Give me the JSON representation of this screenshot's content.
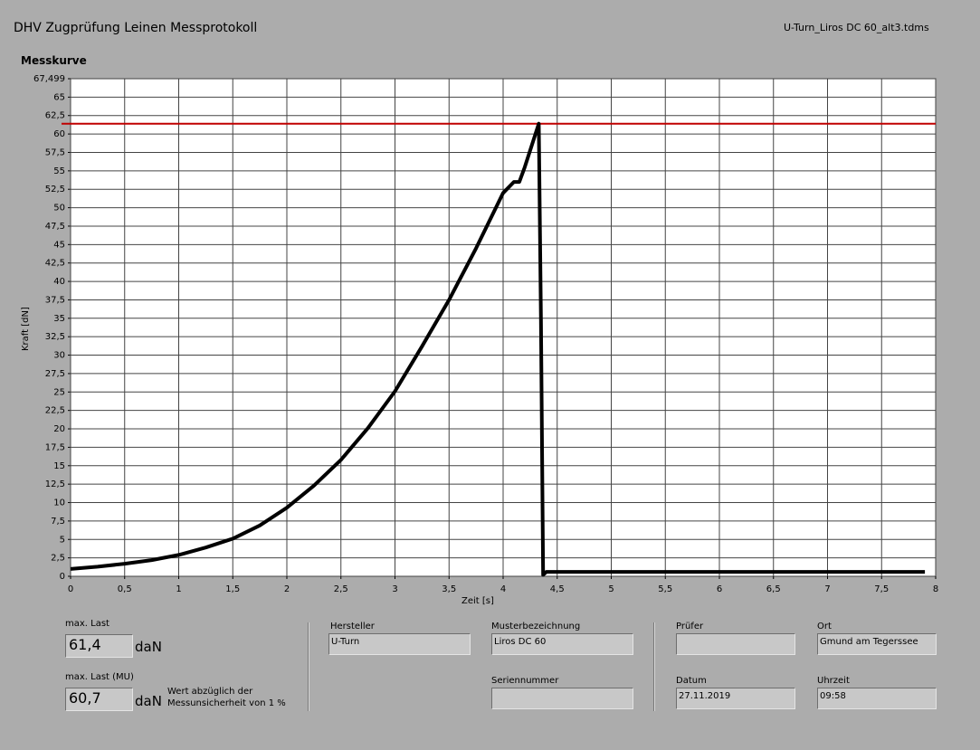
{
  "header": {
    "title": "DHV Zugprüfung Leinen Messprotokoll",
    "file": "U-Turn_Liros DC 60_alt3.tdms"
  },
  "chart_data": {
    "type": "line",
    "title": "Messkurve",
    "x_label": "Zeit [s]",
    "y_label": "Kraft [dN]",
    "x": [
      0,
      0.25,
      0.5,
      0.75,
      1,
      1.25,
      1.5,
      1.75,
      2,
      2.25,
      2.5,
      2.75,
      3,
      3.25,
      3.5,
      3.75,
      4,
      4.1,
      4.15,
      4.2,
      4.33,
      4.35,
      4.37,
      4.4,
      5,
      6,
      7,
      7.9
    ],
    "values": [
      1.0,
      1.3,
      1.7,
      2.2,
      2.9,
      3.9,
      5.1,
      6.9,
      9.3,
      12.3,
      15.8,
      20.1,
      25.1,
      31.2,
      37.5,
      44.5,
      52.0,
      53.5,
      53.5,
      55.5,
      61.4,
      35,
      0.2,
      0.6,
      0.6,
      0.6,
      0.6,
      0.6
    ],
    "color": "#000000",
    "reference_line": {
      "value": 61.4,
      "color": "#c00000"
    },
    "xlim": [
      0,
      8
    ],
    "xticks": [
      0,
      {
        "value": 0.5,
        "label": "0,5"
      },
      1,
      {
        "value": 1.5,
        "label": "1,5"
      },
      2,
      {
        "value": 2.5,
        "label": "2,5"
      },
      3,
      {
        "value": 3.5,
        "label": "3,5"
      },
      4,
      {
        "value": 4.5,
        "label": "4,5"
      },
      5,
      {
        "value": 5.5,
        "label": "5,5"
      },
      6,
      {
        "value": 6.5,
        "label": "6,5"
      },
      7,
      {
        "value": 7.5,
        "label": "7,5"
      },
      8
    ],
    "ylim": [
      0,
      67.499
    ],
    "yticks": [
      0,
      {
        "value": 2.5,
        "label": "2,5"
      },
      5,
      {
        "value": 7.5,
        "label": "7,5"
      },
      10,
      {
        "value": 12.5,
        "label": "12,5"
      },
      15,
      {
        "value": 17.5,
        "label": "17,5"
      },
      20,
      {
        "value": 22.5,
        "label": "22,5"
      },
      25,
      {
        "value": 27.5,
        "label": "27,5"
      },
      30,
      {
        "value": 32.5,
        "label": "32,5"
      },
      35,
      {
        "value": 37.5,
        "label": "37,5"
      },
      40,
      {
        "value": 42.5,
        "label": "42,5"
      },
      45,
      {
        "value": 47.5,
        "label": "47,5"
      },
      50,
      {
        "value": 52.5,
        "label": "52,5"
      },
      55,
      {
        "value": 57.5,
        "label": "57,5"
      },
      60,
      {
        "value": 62.5,
        "label": "62,5"
      },
      65,
      {
        "value": 67.499,
        "label": "67,499"
      }
    ],
    "grid": true
  },
  "results": {
    "max_label": "max. Last",
    "max_value": "61,4",
    "max_unit": "daN",
    "mu_label": "max. Last (MU)",
    "mu_value": "60,7",
    "mu_unit": "daN",
    "note": "Wert abzüglich der Messunsicherheit von 1 %"
  },
  "fields": {
    "hersteller": {
      "label": "Hersteller",
      "value": "U-Turn"
    },
    "muster": {
      "label": "Musterbezeichnung",
      "value": "Liros DC 60"
    },
    "serie": {
      "label": "Seriennummer"
    },
    "pruefer": {
      "label": "Prüfer"
    },
    "ort": {
      "label": "Ort",
      "value": "Gmund am Tegerssee"
    },
    "datum": {
      "label": "Datum",
      "value": "27.11.2019"
    },
    "uhrzeit": {
      "label": "Uhrzeit",
      "value": "09:58"
    }
  }
}
